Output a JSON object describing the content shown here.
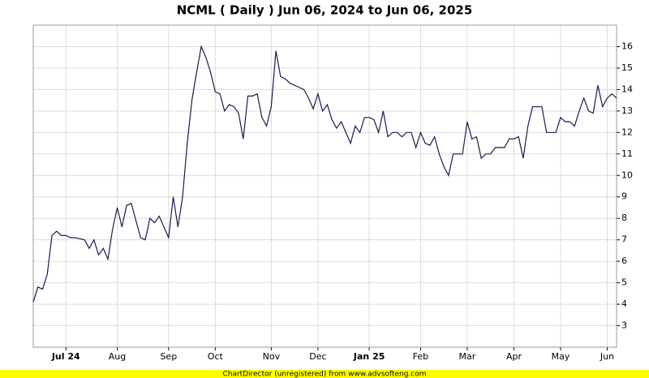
{
  "chart_data": {
    "type": "line",
    "title": "NCML ( Daily ) Jun 06, 2024 to Jun 06, 2025",
    "footer": "ChartDirector (unregistered) from www.advsofteng.com",
    "categories": [
      null,
      null,
      null,
      null,
      null,
      null,
      null,
      "Jul 24",
      null,
      null,
      null,
      null,
      null,
      null,
      null,
      null,
      null,
      null,
      "Aug",
      null,
      null,
      null,
      null,
      null,
      null,
      null,
      null,
      null,
      null,
      "Sep",
      null,
      null,
      null,
      null,
      null,
      null,
      null,
      null,
      null,
      "Oct",
      null,
      null,
      null,
      null,
      null,
      null,
      null,
      null,
      null,
      null,
      null,
      "Nov",
      null,
      null,
      null,
      null,
      null,
      null,
      null,
      null,
      null,
      "Dec",
      null,
      null,
      null,
      null,
      null,
      null,
      null,
      null,
      null,
      null,
      "Jan 25",
      null,
      null,
      null,
      null,
      null,
      null,
      null,
      null,
      null,
      null,
      "Feb",
      null,
      null,
      null,
      null,
      null,
      null,
      null,
      null,
      null,
      "Mar",
      null,
      null,
      null,
      null,
      null,
      null,
      null,
      null,
      null,
      "Apr",
      null,
      null,
      null,
      null,
      null,
      null,
      null,
      null,
      null,
      "May",
      null,
      null,
      null,
      null,
      null,
      null,
      null,
      null,
      null,
      "Jun",
      null,
      null
    ],
    "values": [
      4.1,
      4.8,
      4.7,
      5.4,
      7.2,
      7.4,
      7.2,
      7.2,
      7.1,
      7.1,
      7.05,
      7.0,
      6.6,
      7.0,
      6.3,
      6.6,
      6.1,
      7.5,
      8.5,
      7.6,
      8.6,
      8.7,
      7.9,
      7.1,
      7.0,
      8.0,
      7.8,
      8.1,
      7.6,
      7.1,
      9.0,
      7.6,
      9.0,
      11.5,
      13.5,
      14.8,
      16.0,
      15.5,
      14.8,
      13.9,
      13.8,
      13.0,
      13.3,
      13.2,
      12.9,
      11.7,
      13.7,
      13.7,
      13.8,
      12.7,
      12.3,
      13.2,
      15.8,
      14.6,
      14.5,
      14.3,
      14.2,
      14.1,
      14.0,
      13.6,
      13.1,
      13.8,
      13.0,
      13.3,
      12.6,
      12.2,
      12.5,
      12.0,
      11.5,
      12.3,
      12.0,
      12.7,
      12.7,
      12.6,
      12.0,
      13.0,
      11.8,
      12.0,
      12.0,
      11.8,
      12.0,
      12.0,
      11.3,
      12.0,
      11.5,
      11.4,
      11.8,
      11.0,
      10.4,
      10.0,
      11.0,
      11.0,
      11.0,
      12.5,
      11.7,
      11.8,
      10.8,
      11.0,
      11.0,
      11.3,
      11.3,
      11.3,
      11.7,
      11.7,
      11.8,
      10.8,
      12.3,
      13.2,
      13.2,
      13.2,
      12.0,
      12.0,
      12.0,
      12.7,
      12.5,
      12.5,
      12.3,
      13.0,
      13.6,
      13.0,
      12.9,
      14.2,
      13.2,
      13.6,
      13.8,
      13.6
    ],
    "color": "#1a1a4e",
    "ylim": [
      2,
      17
    ],
    "yticks": [
      3,
      4,
      5,
      6,
      7,
      8,
      9,
      10,
      11,
      12,
      13,
      14,
      15,
      16
    ],
    "grid": true
  }
}
